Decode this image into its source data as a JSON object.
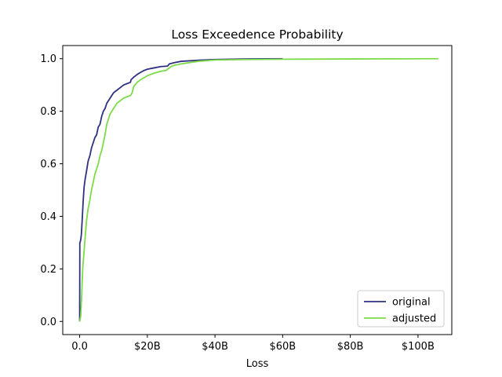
{
  "chart_data": {
    "type": "line",
    "title": "Loss Exceedence Probability",
    "xlabel": "Loss",
    "ylabel": "",
    "xlim": [
      -5,
      110
    ],
    "ylim": [
      -0.05,
      1.05
    ],
    "x_unit": "billions USD",
    "x_ticks": [
      {
        "value": 0,
        "label": "0.0"
      },
      {
        "value": 20,
        "label": "$20B"
      },
      {
        "value": 40,
        "label": "$40B"
      },
      {
        "value": 60,
        "label": "$60B"
      },
      {
        "value": 80,
        "label": "$80B"
      },
      {
        "value": 100,
        "label": "$100B"
      }
    ],
    "y_ticks": [
      {
        "value": 0.0,
        "label": "0.0"
      },
      {
        "value": 0.2,
        "label": "0.2"
      },
      {
        "value": 0.4,
        "label": "0.4"
      },
      {
        "value": 0.6,
        "label": "0.6"
      },
      {
        "value": 0.8,
        "label": "0.8"
      },
      {
        "value": 1.0,
        "label": "1.0"
      }
    ],
    "grid": false,
    "legend_position": "lower-right",
    "series": [
      {
        "name": "original",
        "color": "#2e3181",
        "x": [
          0,
          0.05,
          0.1,
          0.3,
          0.5,
          0.8,
          1.0,
          1.3,
          1.6,
          2.0,
          2.5,
          3.0,
          3.5,
          4.0,
          4.5,
          5.0,
          5.5,
          6.0,
          6.5,
          7.0,
          7.5,
          8.0,
          8.5,
          9.0,
          10.0,
          11.0,
          12.0,
          13.0,
          14.0,
          15.0,
          15.2,
          16.0,
          17.0,
          18.0,
          19.0,
          20.0,
          22.0,
          24.0,
          26.0,
          26.5,
          28.0,
          30.0,
          35.0,
          40.0,
          50.0,
          60.0
        ],
        "y": [
          0.0,
          0.3,
          0.3,
          0.31,
          0.33,
          0.4,
          0.45,
          0.51,
          0.54,
          0.57,
          0.61,
          0.63,
          0.66,
          0.68,
          0.7,
          0.71,
          0.74,
          0.75,
          0.78,
          0.8,
          0.81,
          0.83,
          0.84,
          0.85,
          0.87,
          0.88,
          0.89,
          0.9,
          0.905,
          0.91,
          0.92,
          0.93,
          0.94,
          0.948,
          0.955,
          0.96,
          0.965,
          0.97,
          0.972,
          0.98,
          0.985,
          0.99,
          0.994,
          0.997,
          0.999,
          1.0
        ]
      },
      {
        "name": "adjusted",
        "color": "#7ddb48",
        "x": [
          0,
          0.3,
          0.6,
          0.9,
          1.2,
          1.5,
          2.0,
          2.5,
          3.0,
          3.5,
          4.0,
          4.5,
          5.0,
          5.5,
          6.0,
          6.5,
          7.0,
          7.5,
          8.0,
          8.5,
          9.0,
          10.0,
          11.0,
          12.0,
          13.0,
          14.0,
          15.0,
          15.5,
          16.0,
          17.0,
          18.0,
          20.0,
          22.0,
          24.0,
          25.5,
          26.0,
          27.0,
          28.0,
          30.0,
          35.0,
          40.0,
          50.0,
          60.0,
          80.0,
          106.0
        ],
        "y": [
          0.0,
          0.02,
          0.1,
          0.2,
          0.25,
          0.3,
          0.38,
          0.43,
          0.46,
          0.5,
          0.53,
          0.56,
          0.58,
          0.6,
          0.63,
          0.65,
          0.68,
          0.71,
          0.75,
          0.77,
          0.79,
          0.81,
          0.83,
          0.84,
          0.85,
          0.855,
          0.86,
          0.87,
          0.895,
          0.91,
          0.92,
          0.935,
          0.945,
          0.952,
          0.955,
          0.96,
          0.97,
          0.975,
          0.98,
          0.99,
          0.995,
          0.997,
          0.998,
          0.999,
          1.0
        ]
      }
    ]
  }
}
